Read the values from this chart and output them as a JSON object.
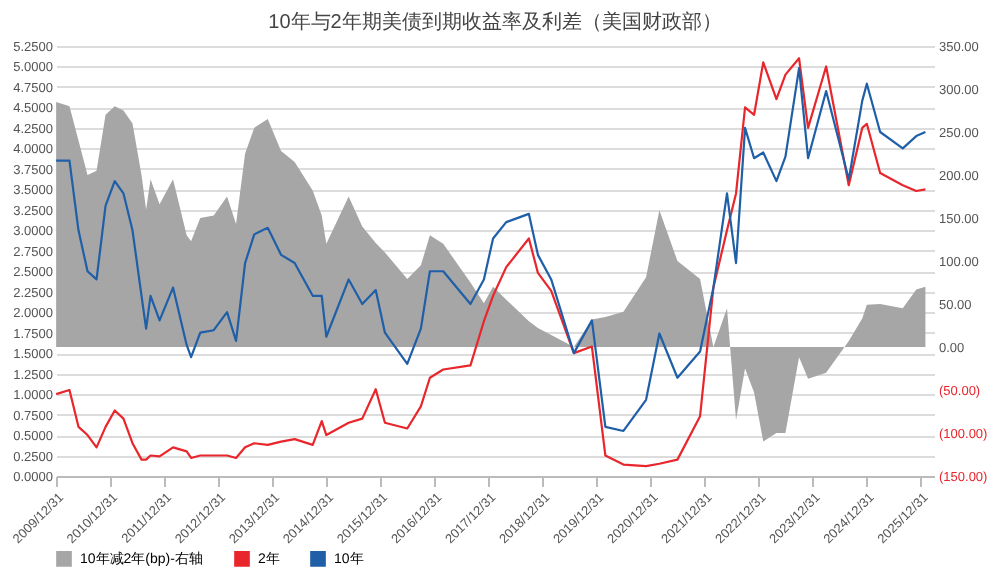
{
  "chart_data": {
    "type": "line",
    "title": "10年与2年期美债到期收益率及利差（美国财政部）",
    "x": [
      "2010-01",
      "2010-04",
      "2010-06",
      "2010-08",
      "2010-10",
      "2010-12",
      "2011-02",
      "2011-04",
      "2011-06",
      "2011-08",
      "2011-09",
      "2011-10",
      "2011-12",
      "2012-03",
      "2012-06",
      "2012-07",
      "2012-09",
      "2012-12",
      "2013-03",
      "2013-05",
      "2013-07",
      "2013-09",
      "2013-12",
      "2014-03",
      "2014-06",
      "2014-10",
      "2014-12",
      "2015-01",
      "2015-06",
      "2015-09",
      "2015-12",
      "2016-02",
      "2016-07",
      "2016-10",
      "2016-12",
      "2017-03",
      "2017-09",
      "2017-12",
      "2018-02",
      "2018-05",
      "2018-10",
      "2018-12",
      "2019-03",
      "2019-08",
      "2019-12",
      "2020-03",
      "2020-07",
      "2020-12",
      "2021-03",
      "2021-07",
      "2021-12",
      "2022-03",
      "2022-06",
      "2022-08",
      "2022-10",
      "2022-12",
      "2023-02",
      "2023-05",
      "2023-07",
      "2023-10",
      "2023-12",
      "2024-04",
      "2024-09",
      "2024-12",
      "2025-01",
      "2025-04",
      "2025-09",
      "2025-12",
      "2026-02"
    ],
    "series": [
      {
        "name": "10年减2年(bp)-右轴",
        "type": "area",
        "axis": "y2",
        "color": "#a6a6a6",
        "values": [
          285,
          280,
          240,
          200,
          205,
          270,
          280,
          275,
          260,
          200,
          160,
          195,
          166,
          195,
          130,
          123,
          150,
          153,
          175,
          143,
          225,
          255,
          265,
          228,
          215,
          182,
          153,
          120,
          175,
          140,
          121,
          110,
          79,
          95,
          130,
          120,
          75,
          51,
          70,
          55,
          30,
          22,
          14,
          0,
          32,
          35,
          41,
          81,
          159,
          100,
          79,
          0,
          45,
          -85,
          -25,
          -53,
          -110,
          -100,
          -100,
          -12,
          -37,
          -30,
          7,
          33,
          49,
          50,
          45,
          67,
          70
        ]
      },
      {
        "name": "2年",
        "color": "#e8262b",
        "values": [
          1.0,
          1.05,
          0.6,
          0.5,
          0.35,
          0.6,
          0.8,
          0.7,
          0.4,
          0.2,
          0.2,
          0.25,
          0.24,
          0.35,
          0.3,
          0.22,
          0.25,
          0.25,
          0.25,
          0.22,
          0.35,
          0.4,
          0.38,
          0.42,
          0.45,
          0.38,
          0.67,
          0.5,
          0.65,
          0.7,
          1.06,
          0.65,
          0.58,
          0.85,
          1.2,
          1.3,
          1.35,
          1.89,
          2.2,
          2.55,
          2.9,
          2.48,
          2.26,
          1.5,
          1.58,
          0.25,
          0.14,
          0.12,
          0.15,
          0.2,
          0.73,
          2.3,
          3.0,
          3.45,
          4.5,
          4.41,
          5.05,
          4.6,
          4.9,
          5.1,
          4.25,
          5.0,
          3.55,
          4.25,
          4.3,
          3.7,
          3.55,
          3.48,
          3.5
        ]
      },
      {
        "name": "10年",
        "color": "#1f5fa8",
        "values": [
          3.85,
          3.85,
          3.0,
          2.5,
          2.4,
          3.3,
          3.6,
          3.45,
          3.0,
          2.2,
          1.8,
          2.2,
          1.9,
          2.3,
          1.6,
          1.45,
          1.75,
          1.78,
          2.0,
          1.65,
          2.6,
          2.95,
          3.03,
          2.7,
          2.6,
          2.2,
          2.2,
          1.7,
          2.4,
          2.1,
          2.27,
          1.75,
          1.37,
          1.8,
          2.5,
          2.5,
          2.1,
          2.4,
          2.9,
          3.1,
          3.2,
          2.7,
          2.4,
          1.5,
          1.9,
          0.6,
          0.55,
          0.93,
          1.74,
          1.2,
          1.52,
          2.3,
          3.45,
          2.6,
          4.25,
          3.88,
          3.95,
          3.6,
          3.9,
          4.98,
          3.88,
          4.7,
          3.62,
          4.58,
          4.79,
          4.2,
          4.0,
          4.15,
          4.2
        ]
      }
    ],
    "xlim": [
      "2009-12-31",
      "2026-03-31"
    ],
    "xticks": [
      {
        "value": "2009-12-31",
        "label": "2009/12/31"
      },
      {
        "value": "2010-12-31",
        "label": "2010/12/31"
      },
      {
        "value": "2011-12-31",
        "label": "2011/12/31"
      },
      {
        "value": "2012-12-31",
        "label": "2012/12/31"
      },
      {
        "value": "2013-12-31",
        "label": "2013/12/31"
      },
      {
        "value": "2014-12-31",
        "label": "2014/12/31"
      },
      {
        "value": "2015-12-31",
        "label": "2015/12/31"
      },
      {
        "value": "2016-12-31",
        "label": "2016/12/31"
      },
      {
        "value": "2017-12-31",
        "label": "2017/12/31"
      },
      {
        "value": "2018-12-31",
        "label": "2018/12/31"
      },
      {
        "value": "2019-12-31",
        "label": "2019/12/31"
      },
      {
        "value": "2020-12-31",
        "label": "2020/12/31"
      },
      {
        "value": "2021-12-31",
        "label": "2021/12/31"
      },
      {
        "value": "2022-12-31",
        "label": "2022/12/31"
      },
      {
        "value": "2023-12-31",
        "label": "2023/12/31"
      },
      {
        "value": "2024-12-31",
        "label": "2024/12/31"
      },
      {
        "value": "2025-12-31",
        "label": "2025/12/31"
      }
    ],
    "ylim": [
      0,
      5.25
    ],
    "yticks": [
      {
        "value": 0,
        "label": "0.0000"
      },
      {
        "value": 0.25,
        "label": "0.2500"
      },
      {
        "value": 0.5,
        "label": "0.5000"
      },
      {
        "value": 0.75,
        "label": "0.7500"
      },
      {
        "value": 1,
        "label": "1.0000"
      },
      {
        "value": 1.25,
        "label": "1.2500"
      },
      {
        "value": 1.5,
        "label": "1.5000"
      },
      {
        "value": 1.75,
        "label": "1.7500"
      },
      {
        "value": 2,
        "label": "2.0000"
      },
      {
        "value": 2.25,
        "label": "2.2500"
      },
      {
        "value": 2.5,
        "label": "2.5000"
      },
      {
        "value": 2.75,
        "label": "2.7500"
      },
      {
        "value": 3,
        "label": "3.0000"
      },
      {
        "value": 3.25,
        "label": "3.2500"
      },
      {
        "value": 3.5,
        "label": "3.5000"
      },
      {
        "value": 3.75,
        "label": "3.7500"
      },
      {
        "value": 4,
        "label": "4.0000"
      },
      {
        "value": 4.25,
        "label": "4.2500"
      },
      {
        "value": 4.5,
        "label": "4.5000"
      },
      {
        "value": 4.75,
        "label": "4.7500"
      },
      {
        "value": 5,
        "label": "5.0000"
      },
      {
        "value": 5.25,
        "label": "5.2500"
      }
    ],
    "y2lim": [
      -150,
      350
    ],
    "y2ticks": [
      {
        "value": -150,
        "label": "(150.00)"
      },
      {
        "value": -100,
        "label": "(100.00)"
      },
      {
        "value": -50,
        "label": "(50.00)"
      },
      {
        "value": 0,
        "label": "0.00"
      },
      {
        "value": 50,
        "label": "50.00"
      },
      {
        "value": 100,
        "label": "100.00"
      },
      {
        "value": 150,
        "label": "150.00"
      },
      {
        "value": 200,
        "label": "200.00"
      },
      {
        "value": 250,
        "label": "250.00"
      },
      {
        "value": 300,
        "label": "300.00"
      },
      {
        "value": 350,
        "label": "350.00"
      }
    ],
    "grid": "y",
    "legend": "bottom"
  }
}
